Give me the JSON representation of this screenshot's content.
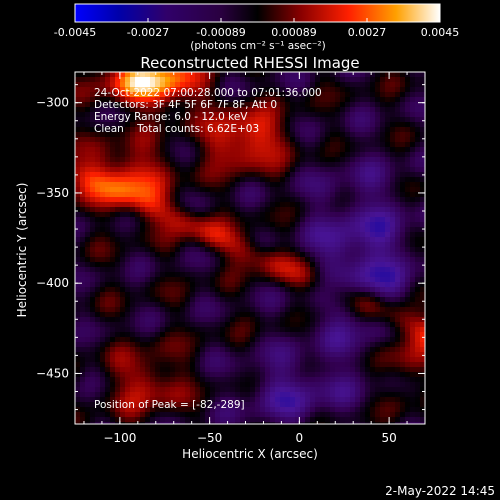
{
  "chart_data": {
    "type": "heatmap",
    "title": "Reconstructed RHESSI Image",
    "xlabel": "Heliocentric X (arcsec)",
    "ylabel": "Heliocentric Y (arcsec)",
    "xlim": [
      -125,
      70
    ],
    "ylim": [
      -478,
      -283
    ],
    "xticks": [
      -100,
      -50,
      0,
      50
    ],
    "yticks": [
      -300,
      -350,
      -400,
      -450
    ],
    "colorbar": {
      "ticks": [
        "-0.0045",
        "-0.0027",
        "-0.00089",
        "0.00089",
        "0.0027",
        "0.0045"
      ],
      "range": [
        -0.0045,
        0.0045
      ],
      "unit_label": "(photons cm⁻² s⁻¹ asec⁻²)"
    },
    "annotations": [
      "24-Oct-2022 07:00:28.000 to 07:01:36.000",
      "Detectors: 3F 4F 5F 6F 7F 8F, Att 0",
      "Energy Range: 6.0 - 12.0 keV",
      "Clean    Total counts: 6.62E+03"
    ],
    "peak_label": "Position of Peak = [-82,-289]",
    "peak": [
      -82,
      -289
    ]
  },
  "footer_date": "2-May-2022 14:45"
}
